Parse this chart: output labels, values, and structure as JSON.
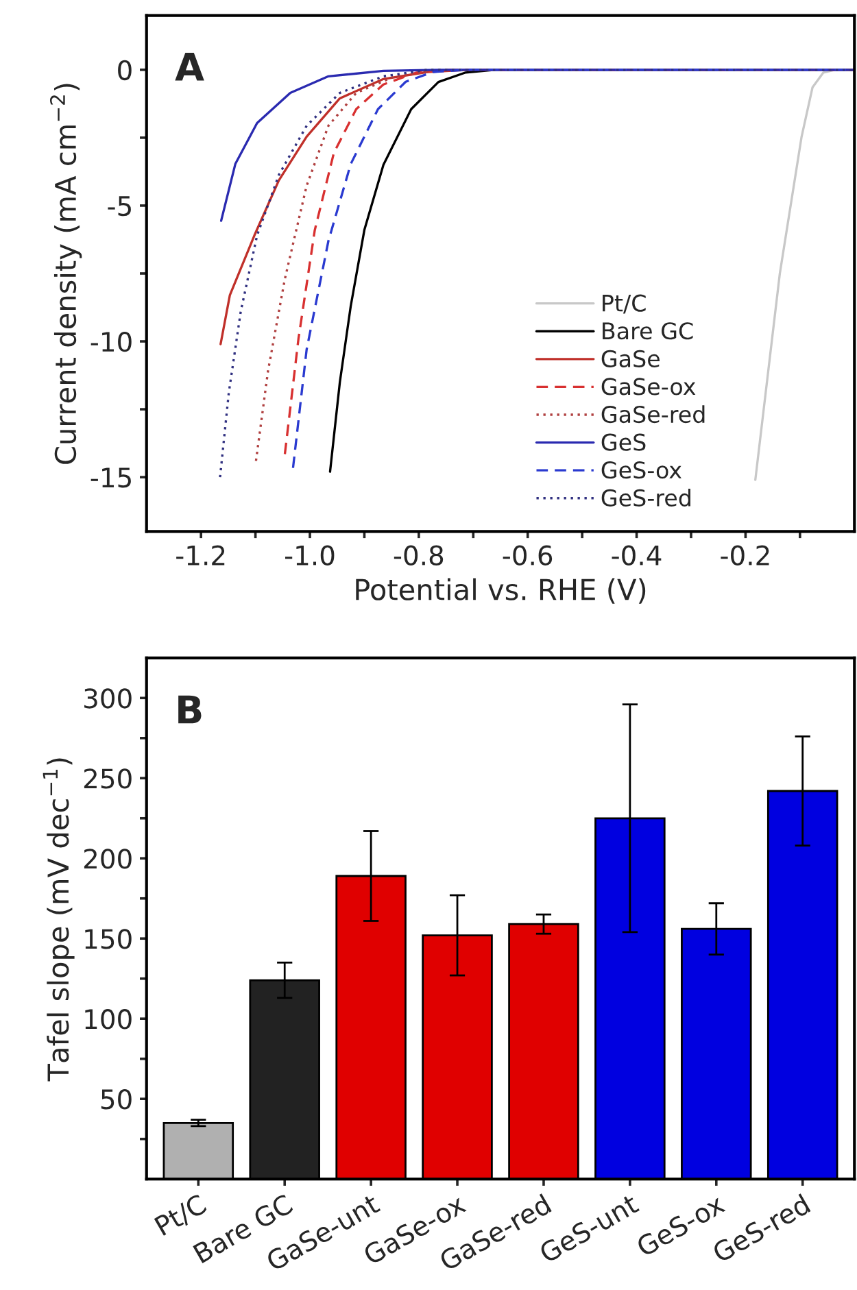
{
  "chart_data": [
    {
      "type": "line",
      "xlabel": "Potential vs. RHE (V)",
      "ylabel": "Current density (mA cm$^{−2}$)",
      "annotations": [
        "A"
      ],
      "xlim": [
        -1.3,
        0
      ],
      "ylim": [
        -17,
        2
      ],
      "xticks": [
        {
          "value": -1.2,
          "label": "-1.2"
        },
        {
          "value": -1.1,
          "label": null
        },
        {
          "value": -1.0,
          "label": "-1.0"
        },
        {
          "value": -0.9,
          "label": null
        },
        {
          "value": -0.8,
          "label": "-0.8"
        },
        {
          "value": -0.7,
          "label": null
        },
        {
          "value": -0.6,
          "label": "-0.6"
        },
        {
          "value": -0.5,
          "label": null
        },
        {
          "value": -0.4,
          "label": "-0.4"
        },
        {
          "value": -0.3,
          "label": null
        },
        {
          "value": -0.2,
          "label": "-0.2"
        },
        {
          "value": -0.1,
          "label": null
        }
      ],
      "yticks": [
        {
          "value": -15,
          "label": "-15"
        },
        {
          "value": -12.5,
          "label": null
        },
        {
          "value": -10,
          "label": "-10"
        },
        {
          "value": -7.5,
          "label": null
        },
        {
          "value": -5,
          "label": "-5"
        },
        {
          "value": -2.5,
          "label": null
        },
        0
      ],
      "grid": false,
      "legend": "lower right",
      "marker": "none",
      "series": [
        {
          "name": "Pt/C",
          "color": "#c8c8c8",
          "line_style": "solid",
          "x": [
            -0.182,
            -0.137,
            -0.097,
            -0.077,
            -0.057,
            -0.036,
            0
          ],
          "values": [
            -15.1,
            -7.5,
            -2.46,
            -0.65,
            -0.1,
            0,
            0
          ]
        },
        {
          "name": "Bare GC",
          "color": "#000000",
          "line_style": "solid",
          "x": [
            -0.963,
            -0.945,
            -0.925,
            -0.9,
            -0.865,
            -0.814,
            -0.764,
            -0.714,
            -0.66,
            0
          ],
          "values": [
            -14.8,
            -11.5,
            -8.7,
            -5.9,
            -3.5,
            -1.45,
            -0.45,
            -0.1,
            0,
            0
          ]
        },
        {
          "name": "GaSe",
          "color": "#c0302a",
          "line_style": "solid",
          "x": [
            -1.164,
            -1.147,
            -1.102,
            -1.057,
            -1.006,
            -0.945,
            -0.865,
            -0.784,
            -0.71,
            0
          ],
          "values": [
            -10.1,
            -8.3,
            -6.1,
            -4.07,
            -2.46,
            -1.05,
            -0.34,
            -0.08,
            0,
            0
          ]
        },
        {
          "name": "GaSe-ox",
          "color": "#d83030",
          "line_style": "dashed",
          "x": [
            -1.046,
            -1.021,
            -0.991,
            -0.956,
            -0.915,
            -0.865,
            -0.804,
            -0.743,
            0
          ],
          "values": [
            -14.15,
            -9.9,
            -5.9,
            -3.06,
            -1.45,
            -0.54,
            -0.1,
            0,
            0
          ]
        },
        {
          "name": "GaSe-red",
          "color": "#b04040",
          "line_style": "dotted",
          "x": [
            -1.099,
            -1.077,
            -1.046,
            -1.006,
            -0.966,
            -0.915,
            -0.844,
            -0.764,
            0
          ],
          "values": [
            -14.4,
            -11.1,
            -7.7,
            -4.27,
            -2.06,
            -0.85,
            -0.24,
            0,
            0
          ]
        },
        {
          "name": "GeS",
          "color": "#2a2ab0",
          "line_style": "solid",
          "x": [
            -1.163,
            -1.137,
            -1.097,
            -1.036,
            -0.966,
            -0.865,
            -0.764,
            0
          ],
          "values": [
            -5.56,
            -3.47,
            -1.96,
            -0.85,
            -0.24,
            -0.04,
            0,
            0
          ]
        },
        {
          "name": "GeS-ox",
          "color": "#2a3ad0",
          "line_style": "dashed",
          "x": [
            -1.031,
            -1.006,
            -0.966,
            -0.925,
            -0.875,
            -0.824,
            -0.774,
            -0.713,
            0
          ],
          "values": [
            -14.66,
            -10.3,
            -6.3,
            -3.47,
            -1.45,
            -0.44,
            -0.08,
            0,
            0
          ]
        },
        {
          "name": "GeS-red",
          "color": "#303080",
          "line_style": "dotted",
          "x": [
            -1.165,
            -1.149,
            -1.127,
            -1.097,
            -1.057,
            -1.006,
            -0.945,
            -0.865,
            -0.784,
            0
          ],
          "values": [
            -15,
            -11.9,
            -8.9,
            -6.1,
            -3.87,
            -2.06,
            -0.85,
            -0.24,
            0,
            0
          ]
        }
      ]
    },
    {
      "type": "bar",
      "ylabel": "Tafel slope (mV dec$^{−1}$)",
      "annotations": [
        "B"
      ],
      "categories": [
        "Pt/C",
        "Bare GC",
        "GaSe-unt",
        "GaSe-ox",
        "GaSe-red",
        "GeS-unt",
        "GeS-ox",
        "GeS-red"
      ],
      "values": [
        35,
        124,
        189,
        152,
        159,
        225,
        156,
        242
      ],
      "errors": [
        2,
        11,
        28,
        25,
        6,
        71,
        16,
        34
      ],
      "colors": [
        "#b0b0b0",
        "#222222",
        "#e00000",
        "#e00000",
        "#e00000",
        "#0000e0",
        "#0000e0",
        "#0000e0"
      ],
      "ylim": [
        0,
        325
      ],
      "yticks": [
        {
          "value": 25,
          "label": null
        },
        50,
        {
          "value": 75,
          "label": null
        },
        100,
        {
          "value": 125,
          "label": null
        },
        150,
        {
          "value": 175,
          "label": null
        },
        200,
        {
          "value": 225,
          "label": null
        },
        250,
        {
          "value": 275,
          "label": null
        },
        300
      ],
      "grid": false
    }
  ]
}
